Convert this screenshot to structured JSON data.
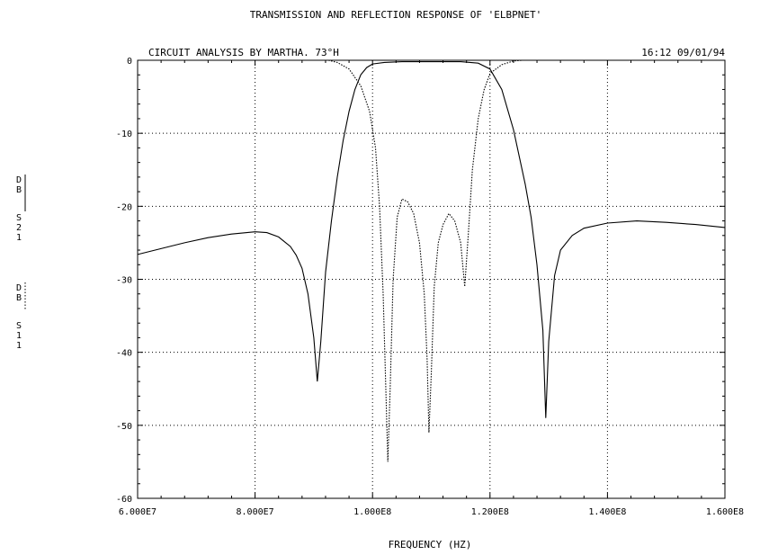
{
  "chart_data": {
    "type": "line",
    "title": "TRANSMISSION AND REFLECTION RESPONSE OF 'ELBPNET'",
    "subtitle_left": "CIRCUIT ANALYSIS BY MARTHA.  73°H",
    "subtitle_right": "16:12 09/01/94",
    "xlabel": "FREQUENCY (HZ)",
    "xlim": [
      60000000,
      160000000
    ],
    "ylim": [
      -60,
      0
    ],
    "grid": true,
    "x_ticks": [
      60000000,
      80000000,
      100000000,
      120000000,
      140000000,
      160000000
    ],
    "x_tick_labels": [
      "6.000E7",
      "8.000E7",
      "1.000E8",
      "1.200E8",
      "1.400E8",
      "1.600E8"
    ],
    "y_ticks": [
      0,
      -10,
      -20,
      -30,
      -40,
      -50,
      -60
    ],
    "y_tick_labels": [
      "0",
      "-10",
      "-20",
      "-30",
      "-40",
      "-50",
      "-60"
    ],
    "series": [
      {
        "name": "DB S21",
        "style": "solid",
        "color": "#000000",
        "points": [
          [
            60000000,
            -26.6
          ],
          [
            64000000,
            -25.8
          ],
          [
            68000000,
            -25.0
          ],
          [
            72000000,
            -24.3
          ],
          [
            76000000,
            -23.8
          ],
          [
            80000000,
            -23.5
          ],
          [
            82000000,
            -23.6
          ],
          [
            84000000,
            -24.2
          ],
          [
            86000000,
            -25.5
          ],
          [
            87000000,
            -26.7
          ],
          [
            88000000,
            -28.5
          ],
          [
            89000000,
            -32.0
          ],
          [
            90000000,
            -38.0
          ],
          [
            90600000,
            -44.0
          ],
          [
            91200000,
            -38.5
          ],
          [
            92000000,
            -29.0
          ],
          [
            93000000,
            -22.0
          ],
          [
            94000000,
            -16.0
          ],
          [
            95000000,
            -11.0
          ],
          [
            96000000,
            -7.0
          ],
          [
            97000000,
            -4.0
          ],
          [
            98000000,
            -2.0
          ],
          [
            99000000,
            -1.0
          ],
          [
            100000000,
            -0.5
          ],
          [
            102000000,
            -0.3
          ],
          [
            105000000,
            -0.2
          ],
          [
            110000000,
            -0.2
          ],
          [
            115000000,
            -0.2
          ],
          [
            118000000,
            -0.4
          ],
          [
            120000000,
            -1.2
          ],
          [
            122000000,
            -4.0
          ],
          [
            124000000,
            -9.5
          ],
          [
            126000000,
            -17.0
          ],
          [
            127000000,
            -21.5
          ],
          [
            128000000,
            -28.0
          ],
          [
            129000000,
            -37.0
          ],
          [
            129500000,
            -49.0
          ],
          [
            130000000,
            -38.5
          ],
          [
            131000000,
            -29.5
          ],
          [
            132000000,
            -26.0
          ],
          [
            134000000,
            -24.0
          ],
          [
            136000000,
            -23.0
          ],
          [
            140000000,
            -22.3
          ],
          [
            145000000,
            -22.0
          ],
          [
            150000000,
            -22.2
          ],
          [
            155000000,
            -22.5
          ],
          [
            160000000,
            -22.9
          ]
        ]
      },
      {
        "name": "DB S11",
        "style": "dotted",
        "color": "#000000",
        "points": [
          [
            92500000,
            0.0
          ],
          [
            94000000,
            -0.3
          ],
          [
            96000000,
            -1.2
          ],
          [
            98000000,
            -3.5
          ],
          [
            99500000,
            -7.0
          ],
          [
            100500000,
            -12.0
          ],
          [
            101200000,
            -20.0
          ],
          [
            101800000,
            -32.0
          ],
          [
            102300000,
            -46.0
          ],
          [
            102600000,
            -55.0
          ],
          [
            103000000,
            -45.0
          ],
          [
            103500000,
            -30.0
          ],
          [
            104200000,
            -21.5
          ],
          [
            105000000,
            -19.0
          ],
          [
            106000000,
            -19.4
          ],
          [
            107000000,
            -21.0
          ],
          [
            108000000,
            -25.0
          ],
          [
            108800000,
            -32.0
          ],
          [
            109300000,
            -41.0
          ],
          [
            109600000,
            -51.0
          ],
          [
            110000000,
            -43.0
          ],
          [
            110500000,
            -31.0
          ],
          [
            111200000,
            -25.0
          ],
          [
            112000000,
            -22.5
          ],
          [
            113000000,
            -21.0
          ],
          [
            114000000,
            -22.0
          ],
          [
            115000000,
            -25.0
          ],
          [
            115700000,
            -31.0
          ],
          [
            116300000,
            -24.0
          ],
          [
            117000000,
            -15.0
          ],
          [
            118000000,
            -8.0
          ],
          [
            119000000,
            -4.0
          ],
          [
            120000000,
            -1.8
          ],
          [
            122000000,
            -0.6
          ],
          [
            124000000,
            -0.1
          ],
          [
            125500000,
            0.0
          ]
        ]
      }
    ],
    "y_axis_label_blocks": [
      {
        "series": "DB S21",
        "line1": "D",
        "line2": "B",
        "line3": "S",
        "line4": "2",
        "line5": "1"
      },
      {
        "series": "DB S11",
        "line1": "D",
        "line2": "B",
        "line3": "S",
        "line4": "1",
        "line5": "1"
      }
    ]
  }
}
